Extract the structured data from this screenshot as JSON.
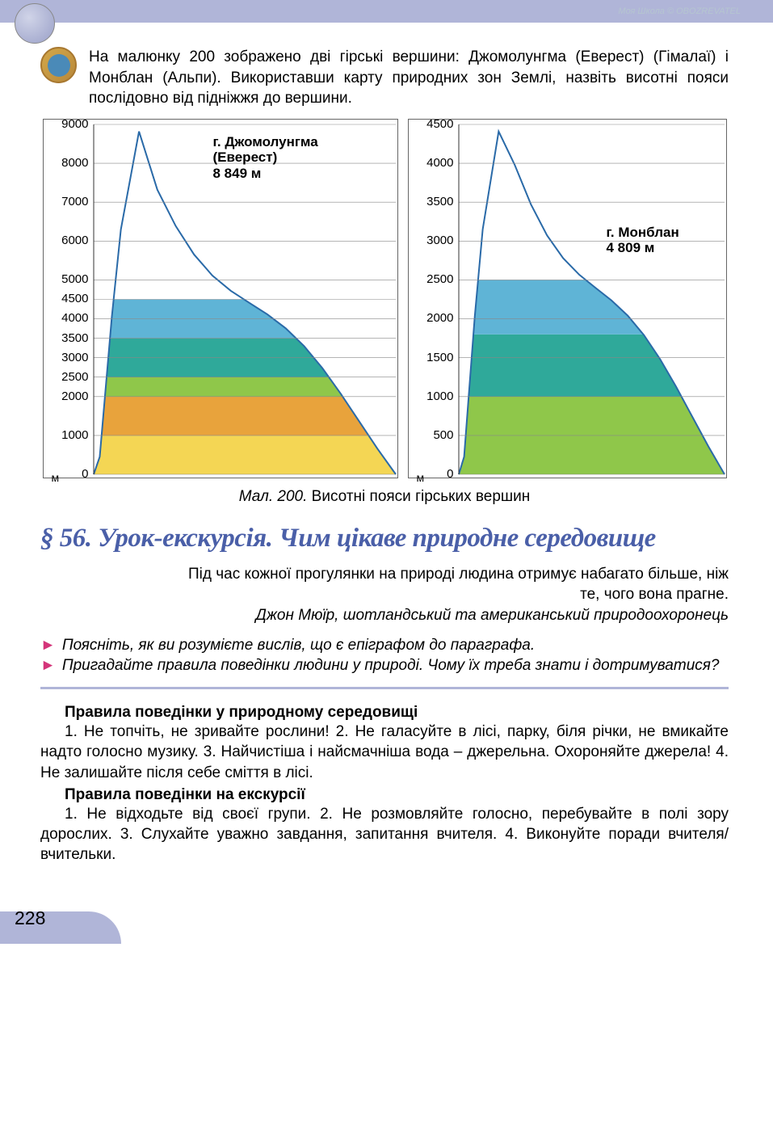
{
  "header": {
    "watermark_text": "Моя Школа © OBOZREVATEL"
  },
  "intro": {
    "text": "На малюнку 200 зображено дві гірські вершини: Джомолунгма (Еверест) (Гімалаї) і Монблан (Альпи). Використавши карту природних зон Землі, назвіть висотні пояси послідовно від підніжжя до вершини."
  },
  "chart_a": {
    "title_lines": [
      "г. Джомолунгма",
      "(Еверест)",
      "8 849 м"
    ],
    "unit": "м",
    "y_max": 9000,
    "yticks": [
      0,
      1000,
      2000,
      2500,
      3000,
      3500,
      4000,
      4500,
      5000,
      6000,
      7000,
      8000,
      9000
    ],
    "bands": [
      {
        "from": 0,
        "to": 1000,
        "color": "#f4d654"
      },
      {
        "from": 1000,
        "to": 2000,
        "color": "#e8a33c"
      },
      {
        "from": 2000,
        "to": 2500,
        "color": "#8fc74a"
      },
      {
        "from": 2500,
        "to": 3000,
        "color": "#2fa99a"
      },
      {
        "from": 3000,
        "to": 3500,
        "color": "#2fa99a"
      },
      {
        "from": 3500,
        "to": 4000,
        "color": "#5fb4d6"
      },
      {
        "from": 4000,
        "to": 4500,
        "color": "#5fb4d6"
      }
    ],
    "snow_color": "#ffffff",
    "mountain_outline": "#2a6aa8",
    "peak_height": 8849,
    "axis_color": "#333333",
    "grid_color": "#888888",
    "background": "#ffffff",
    "label_fontsize": 15,
    "title_fontsize": 17
  },
  "chart_b": {
    "title_lines": [
      "г. Монблан",
      "4 809 м"
    ],
    "unit": "м",
    "y_max": 4500,
    "yticks": [
      0,
      500,
      1000,
      1500,
      2000,
      2500,
      3000,
      3500,
      4000,
      4500
    ],
    "bands": [
      {
        "from": 0,
        "to": 1000,
        "color": "#8fc74a"
      },
      {
        "from": 1000,
        "to": 1800,
        "color": "#2fa99a"
      },
      {
        "from": 1800,
        "to": 2500,
        "color": "#5fb4d6"
      }
    ],
    "snow_color": "#ffffff",
    "mountain_outline": "#2a6aa8",
    "peak_height": 4809,
    "axis_color": "#333333",
    "grid_color": "#888888",
    "background": "#ffffff",
    "label_fontsize": 15,
    "title_fontsize": 17
  },
  "caption": {
    "fig": "Мал. 200.",
    "text": " Висотні пояси гірських вершин"
  },
  "section": {
    "title": "§ 56. Урок-екскурсія. Чим цікаве природне середовище"
  },
  "epigraph": {
    "quote": "Під час кожної прогулянки на природі людина отримує набагато більше, ніж те, чого вона прагне.",
    "attribution": "Джон Мюїр, шотландський та американський природоохоронець"
  },
  "questions": [
    "Поясніть, як ви розумієте вислів, що є епіграфом до параграфа.",
    "Пригадайте правила поведінки людини у природі. Чому їх треба знати і дотримуватися?"
  ],
  "rules1": {
    "title": "Правила поведінки у природному середовищі",
    "body": "1. Не топчіть, не зривайте рослини! 2. Не галасуйте в лісі, парку, біля річки, не вмикайте надто голосно музику. 3. Найчистіша і найсмачніша вода – джерельна. Охороняйте джерела! 4. Не залишайте після себе сміття в лісі."
  },
  "rules2": {
    "title": "Правила поведінки на екскурсії",
    "body": "1. Не відходьте від своєї групи. 2. Не розмовляйте голосно, перебувайте в полі зору дорослих. 3. Слухайте уважно завдання, запитання вчителя. 4. Виконуйте поради вчителя/вчительки."
  },
  "page_number": "228",
  "colors": {
    "header_bar": "#b0b5d8",
    "section_title": "#4a5fa8",
    "bullet": "#d4357a"
  }
}
